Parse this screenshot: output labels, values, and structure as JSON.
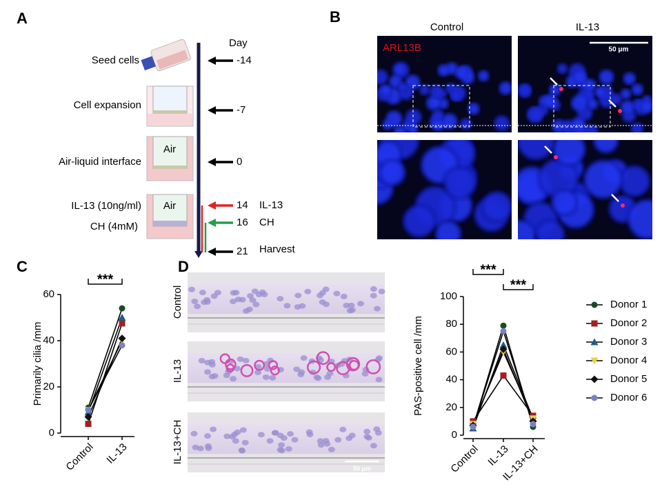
{
  "panel_labels": [
    "A",
    "B",
    "C",
    "D"
  ],
  "timeline": {
    "day_header": "Day",
    "steps": [
      "Seed cells",
      "Cell expansion",
      "Air-liquid interface",
      "IL-13 (10ng/ml)",
      "CH (4mM)"
    ],
    "well_labels": [
      "Air",
      "Air"
    ],
    "days": [
      "-14",
      "-7",
      "0",
      "14",
      "16",
      "21"
    ],
    "events": [
      "IL-13",
      "CH",
      "Harvest"
    ]
  },
  "panel_b": {
    "columns": [
      "Control",
      "IL-13"
    ],
    "stain": "ARL13B",
    "scale_bar": "50 μm"
  },
  "panel_d_images": {
    "rows": [
      "Control",
      "IL-13",
      "IL-13+CH"
    ],
    "scale_bar": "50 μm"
  },
  "chart_data": [
    {
      "type": "line",
      "y_label": "Primarily cilia /mm",
      "categories": [
        "Control",
        "IL-13"
      ],
      "ylim": [
        0,
        60
      ],
      "yticks": [
        0,
        20,
        40,
        60
      ],
      "line_color": "#000000",
      "significance": [
        {
          "label": "***",
          "between": [
            0,
            1
          ]
        }
      ],
      "series": [
        {
          "color": "#1b4a26",
          "marker": "circle",
          "values": [
            11,
            54
          ]
        },
        {
          "color": "#a3201f",
          "marker": "square",
          "values": [
            4,
            47.5
          ]
        },
        {
          "color": "#205b8d",
          "marker": "triangle",
          "values": [
            9,
            50
          ]
        },
        {
          "color": "#e6d24a",
          "marker": "triangle-down",
          "values": [
            10,
            40
          ]
        },
        {
          "color": "#111111",
          "marker": "diamond",
          "values": [
            7,
            41
          ]
        },
        {
          "color": "#7c80c6",
          "marker": "circle",
          "values": [
            10,
            38
          ]
        }
      ]
    },
    {
      "type": "line",
      "y_label": "PAS-positive cell /mm",
      "categories": [
        "Control",
        "IL-13",
        "IL-13+CH"
      ],
      "ylim": [
        0,
        100
      ],
      "yticks": [
        0,
        20,
        40,
        60,
        80,
        100
      ],
      "line_color": "#000000",
      "legend": "right",
      "significance": [
        {
          "label": "***",
          "between": [
            0,
            1
          ]
        },
        {
          "label": "***",
          "between": [
            1,
            2
          ]
        }
      ],
      "series": [
        {
          "name": "Donor 1",
          "color": "#1b4a26",
          "marker": "circle",
          "values": [
            6,
            79,
            6
          ]
        },
        {
          "name": "Donor 2",
          "color": "#a3201f",
          "marker": "square",
          "values": [
            10,
            43,
            14
          ]
        },
        {
          "name": "Donor 3",
          "color": "#205b8d",
          "marker": "triangle",
          "values": [
            5,
            65,
            12
          ]
        },
        {
          "name": "Donor 4",
          "color": "#e6d24a",
          "marker": "triangle-down",
          "values": [
            8,
            60,
            12
          ]
        },
        {
          "name": "Donor 5",
          "color": "#111111",
          "marker": "diamond",
          "values": [
            7,
            62,
            10
          ]
        },
        {
          "name": "Donor 6",
          "color": "#7c80c6",
          "marker": "circle",
          "values": [
            6,
            75,
            8
          ]
        }
      ]
    }
  ]
}
